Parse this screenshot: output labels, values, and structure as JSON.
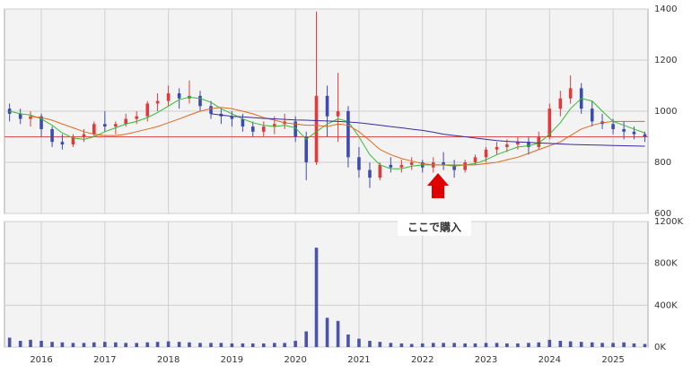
{
  "chart_data": [
    {
      "type": "candlestick",
      "x": [
        2015.5,
        2015.67,
        2015.83,
        2016.0,
        2016.17,
        2016.33,
        2016.5,
        2016.67,
        2016.83,
        2017.0,
        2017.17,
        2017.33,
        2017.5,
        2017.67,
        2017.83,
        2018.0,
        2018.17,
        2018.33,
        2018.5,
        2018.67,
        2018.83,
        2019.0,
        2019.17,
        2019.33,
        2019.5,
        2019.67,
        2019.83,
        2020.0,
        2020.17,
        2020.33,
        2020.5,
        2020.67,
        2020.83,
        2021.0,
        2021.17,
        2021.33,
        2021.5,
        2021.67,
        2021.83,
        2022.0,
        2022.17,
        2022.33,
        2022.5,
        2022.67,
        2022.83,
        2023.0,
        2023.17,
        2023.33,
        2023.5,
        2023.67,
        2023.83,
        2024.0,
        2024.17,
        2024.33,
        2024.5,
        2024.67,
        2024.83,
        2025.0,
        2025.17,
        2025.33,
        2025.5
      ],
      "open": [
        1010,
        990,
        970,
        980,
        930,
        880,
        870,
        900,
        910,
        950,
        940,
        950,
        970,
        980,
        1030,
        1040,
        1070,
        1050,
        1060,
        1020,
        990,
        980,
        970,
        940,
        920,
        940,
        950,
        960,
        900,
        800,
        1060,
        980,
        1000,
        820,
        770,
        740,
        790,
        780,
        790,
        800,
        780,
        800,
        790,
        770,
        800,
        820,
        850,
        860,
        870,
        880,
        860,
        900,
        1010,
        1050,
        1090,
        1010,
        960,
        950,
        930,
        920,
        910
      ],
      "high": [
        1030,
        1010,
        1000,
        990,
        940,
        910,
        910,
        930,
        960,
        1000,
        960,
        990,
        1000,
        1040,
        1070,
        1100,
        1090,
        1120,
        1080,
        1040,
        1010,
        1000,
        990,
        960,
        960,
        980,
        990,
        980,
        920,
        1390,
        1100,
        1150,
        1020,
        860,
        800,
        800,
        820,
        810,
        820,
        810,
        820,
        840,
        810,
        810,
        830,
        860,
        880,
        890,
        900,
        900,
        920,
        1030,
        1080,
        1140,
        1110,
        1040,
        990,
        970,
        960,
        940,
        920
      ],
      "low": [
        960,
        950,
        940,
        900,
        860,
        850,
        860,
        880,
        900,
        920,
        910,
        940,
        950,
        960,
        1000,
        1020,
        1010,
        1030,
        1000,
        970,
        950,
        940,
        920,
        900,
        900,
        910,
        930,
        880,
        730,
        790,
        900,
        880,
        780,
        740,
        700,
        730,
        760,
        760,
        770,
        760,
        760,
        770,
        740,
        760,
        790,
        800,
        830,
        840,
        850,
        830,
        850,
        890,
        980,
        1030,
        990,
        940,
        930,
        910,
        890,
        890,
        880
      ],
      "close": [
        990,
        970,
        980,
        930,
        880,
        870,
        900,
        910,
        950,
        940,
        950,
        970,
        980,
        1030,
        1040,
        1070,
        1050,
        1060,
        1020,
        990,
        980,
        970,
        940,
        920,
        940,
        950,
        960,
        900,
        800,
        1060,
        980,
        1000,
        820,
        770,
        740,
        790,
        780,
        790,
        800,
        780,
        800,
        790,
        770,
        800,
        820,
        850,
        860,
        870,
        880,
        860,
        900,
        1010,
        1050,
        1090,
        1010,
        960,
        950,
        930,
        920,
        910,
        900
      ],
      "up_color": "#e03a3a",
      "down_color": "#3d4bb0",
      "series": [
        {
          "color": "#33bb33",
          "values": [
            1000,
            990,
            985,
            970,
            945,
            915,
            895,
            890,
            900,
            920,
            935,
            950,
            960,
            975,
            995,
            1020,
            1045,
            1055,
            1050,
            1035,
            1010,
            990,
            970,
            955,
            945,
            940,
            945,
            935,
            890,
            920,
            950,
            970,
            960,
            900,
            830,
            790,
            775,
            775,
            785,
            790,
            790,
            790,
            785,
            790,
            795,
            810,
            830,
            845,
            860,
            865,
            875,
            910,
            955,
            1010,
            1050,
            1040,
            1000,
            960,
            945,
            930,
            915
          ]
        },
        {
          "color": "#e06a1a",
          "values": [
            null,
            null,
            980,
            975,
            965,
            950,
            935,
            920,
            910,
            905,
            905,
            910,
            920,
            930,
            940,
            955,
            970,
            985,
            1000,
            1010,
            1015,
            1010,
            1000,
            990,
            975,
            965,
            955,
            950,
            945,
            945,
            940,
            950,
            945,
            920,
            885,
            850,
            830,
            815,
            805,
            795,
            790,
            790,
            790,
            790,
            790,
            795,
            800,
            810,
            820,
            835,
            850,
            865,
            880,
            905,
            930,
            945,
            955,
            960,
            960,
            960,
            960
          ]
        },
        {
          "color": "#3a2aa0",
          "values": [
            null,
            null,
            null,
            null,
            null,
            null,
            null,
            null,
            null,
            null,
            null,
            null,
            null,
            null,
            null,
            null,
            null,
            null,
            null,
            990,
            985,
            980,
            978,
            975,
            972,
            970,
            968,
            966,
            965,
            963,
            962,
            960,
            958,
            955,
            950,
            945,
            940,
            935,
            930,
            925,
            918,
            910,
            905,
            900,
            895,
            890,
            885,
            882,
            880,
            878,
            876,
            874,
            872,
            870,
            869,
            868,
            867,
            866,
            865,
            864,
            863
          ]
        }
      ],
      "hline": 900,
      "hline_color": "#e05050",
      "xlim": [
        2015.42,
        2025.55
      ],
      "xticks": [
        2016,
        2017,
        2018,
        2019,
        2020,
        2021,
        2022,
        2023,
        2024,
        2025
      ],
      "ylim": [
        600,
        1400
      ],
      "yticks": [
        600,
        800,
        1000,
        1200,
        1400
      ],
      "annotation": "ここで購入",
      "annotation_color": "#e00000"
    },
    {
      "type": "bar",
      "color": "#4a54a8",
      "values": [
        90000,
        60000,
        70000,
        60000,
        50000,
        45000,
        40000,
        40000,
        45000,
        50000,
        45000,
        40000,
        40000,
        45000,
        50000,
        55000,
        50000,
        45000,
        40000,
        40000,
        40000,
        35000,
        35000,
        35000,
        35000,
        40000,
        40000,
        60000,
        150000,
        950000,
        280000,
        250000,
        120000,
        80000,
        60000,
        50000,
        40000,
        35000,
        30000,
        35000,
        40000,
        40000,
        40000,
        35000,
        35000,
        40000,
        40000,
        35000,
        35000,
        40000,
        45000,
        70000,
        60000,
        55000,
        50000,
        45000,
        40000,
        40000,
        45000,
        35000,
        30000
      ],
      "ylim": [
        0,
        1200000
      ],
      "yticks": [
        {
          "value": 0,
          "label": "0K"
        },
        {
          "value": 400000,
          "label": "400K"
        },
        {
          "value": 800000,
          "label": "800K"
        },
        {
          "value": 1200000,
          "label": "1200K"
        }
      ]
    }
  ]
}
